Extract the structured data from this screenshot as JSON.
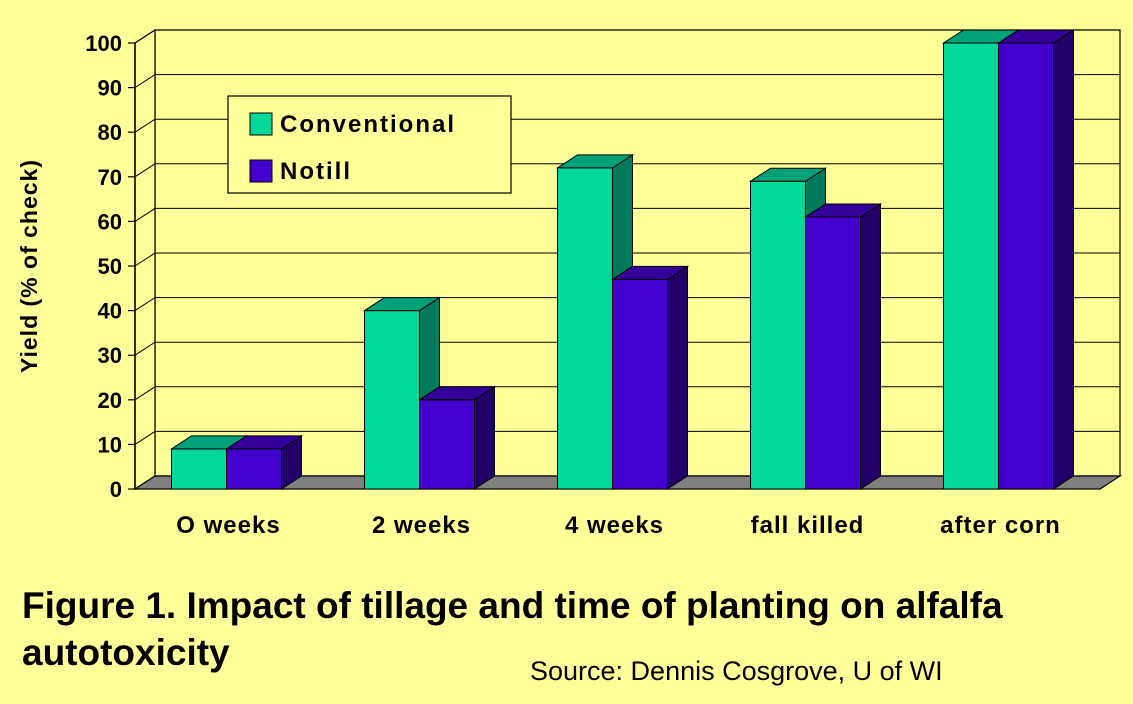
{
  "chart_data": {
    "type": "bar",
    "categories": [
      "O weeks",
      "2 weeks",
      "4 weeks",
      "fall killed",
      "after corn"
    ],
    "series": [
      {
        "name": "Conventional",
        "values": [
          9,
          40,
          72,
          69,
          100
        ],
        "color": "#00d89a",
        "side_color": "#007a58",
        "top_color": "#00a078"
      },
      {
        "name": "Notill",
        "values": [
          9,
          20,
          47,
          61,
          100
        ],
        "color": "#4400cc",
        "side_color": "#22006a",
        "top_color": "#330099"
      }
    ],
    "ylabel": "Yield (% of check)",
    "xlabel": "",
    "ylim": [
      0,
      100
    ],
    "yticks": [
      0,
      10,
      20,
      30,
      40,
      50,
      60,
      70,
      80,
      90,
      100
    ],
    "grid": true,
    "legend_position": "top-left"
  },
  "caption": {
    "title": "Figure 1. Impact of tillage and time of planting on alfalfa autotoxicity",
    "source": "Source: Dennis Cosgrove, U of WI"
  },
  "colors": {
    "background": "#ffff99",
    "floor": "#808080"
  }
}
